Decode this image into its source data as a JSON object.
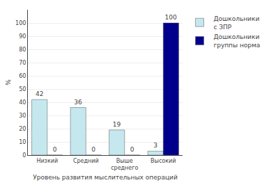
{
  "chart_data": {
    "type": "bar",
    "categories": [
      "Низкий",
      "Средний",
      "Выше\nсреднего",
      "Высокий"
    ],
    "series": [
      {
        "name": "Дошкольники\nс ЗПР",
        "color": "#c5e8ef",
        "values": [
          42,
          36,
          19,
          3
        ]
      },
      {
        "name": "Дошкольники\nгруппы норма",
        "color": "#00008b",
        "values": [
          0,
          0,
          0,
          100
        ]
      }
    ],
    "x_label": "Уровень развития мыслительных операций",
    "y_label": "%",
    "ylim": [
      0,
      110
    ],
    "yticks": [
      0,
      10,
      20,
      30,
      40,
      50,
      60,
      70,
      80,
      90,
      100
    ],
    "grid": true,
    "legend": "right",
    "data_labels": true
  }
}
